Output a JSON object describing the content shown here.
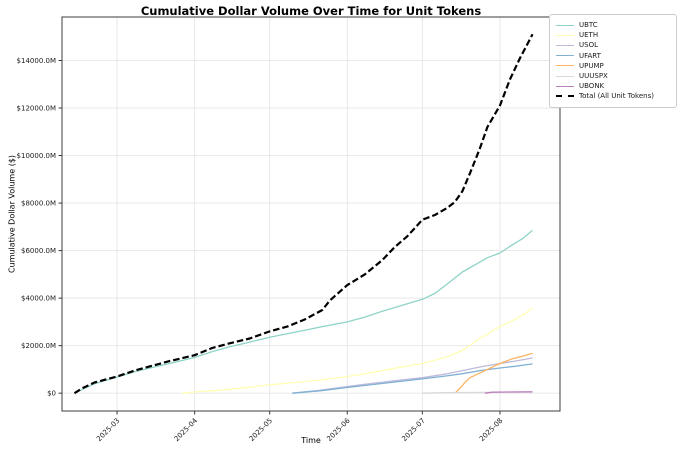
{
  "chart_data": {
    "type": "line",
    "title": "Cumulative Dollar Volume Over Time for Unit Tokens",
    "xlabel": "Time",
    "ylabel": "Cumulative Dollar Volume ($)",
    "x_unit": "day-of-year-2025",
    "xlim": [
      38,
      237
    ],
    "ylim": [
      -750,
      15830
    ],
    "grid": true,
    "legend_position": "upper-right-outside",
    "grid_color": "#e6e6e6",
    "spine_color": "#3c3c3c",
    "xticks": {
      "values": [
        60,
        91,
        121,
        152,
        182,
        213
      ],
      "labels": [
        "2025-03",
        "2025-04",
        "2025-05",
        "2025-06",
        "2025-07",
        "2025-08"
      ]
    },
    "yticks": {
      "values": [
        0,
        2000,
        4000,
        6000,
        8000,
        10000,
        12000,
        14000
      ],
      "labels": [
        "$0",
        "$2000.0M",
        "$4000.0M",
        "$6000.0M",
        "$8000.0M",
        "$10000.0M",
        "$12000.0M",
        "$14000.0M"
      ]
    },
    "series": [
      {
        "name": "UBTC",
        "color": "#8dd3c7",
        "dash": false,
        "points": [
          [
            43,
            0
          ],
          [
            51,
            400
          ],
          [
            60,
            680
          ],
          [
            67,
            900
          ],
          [
            74,
            1080
          ],
          [
            81,
            1250
          ],
          [
            91,
            1500
          ],
          [
            98,
            1750
          ],
          [
            105,
            1950
          ],
          [
            113,
            2150
          ],
          [
            121,
            2350
          ],
          [
            128,
            2500
          ],
          [
            135,
            2650
          ],
          [
            142,
            2800
          ],
          [
            152,
            3000
          ],
          [
            159,
            3200
          ],
          [
            166,
            3450
          ],
          [
            174,
            3700
          ],
          [
            182,
            3950
          ],
          [
            187,
            4200
          ],
          [
            192,
            4600
          ],
          [
            198,
            5100
          ],
          [
            203,
            5400
          ],
          [
            208,
            5700
          ],
          [
            213,
            5900
          ],
          [
            218,
            6250
          ],
          [
            222,
            6500
          ],
          [
            226,
            6850
          ]
        ]
      },
      {
        "name": "UETH",
        "color": "#ffffb3",
        "dash": false,
        "points": [
          [
            86,
            0
          ],
          [
            91,
            50
          ],
          [
            101,
            120
          ],
          [
            111,
            230
          ],
          [
            121,
            350
          ],
          [
            131,
            450
          ],
          [
            141,
            550
          ],
          [
            152,
            700
          ],
          [
            161,
            850
          ],
          [
            171,
            1050
          ],
          [
            182,
            1250
          ],
          [
            191,
            1500
          ],
          [
            198,
            1800
          ],
          [
            205,
            2300
          ],
          [
            213,
            2800
          ],
          [
            219,
            3100
          ],
          [
            223,
            3350
          ],
          [
            226,
            3600
          ]
        ]
      },
      {
        "name": "USOL",
        "color": "#bebada",
        "dash": false,
        "points": [
          [
            130,
            0
          ],
          [
            141,
            120
          ],
          [
            152,
            280
          ],
          [
            161,
            400
          ],
          [
            171,
            520
          ],
          [
            182,
            650
          ],
          [
            191,
            800
          ],
          [
            198,
            950
          ],
          [
            205,
            1100
          ],
          [
            213,
            1250
          ],
          [
            219,
            1350
          ],
          [
            226,
            1480
          ]
        ]
      },
      {
        "name": "UFART",
        "color": "#80b1d3",
        "dash": false,
        "points": [
          [
            130,
            0
          ],
          [
            141,
            100
          ],
          [
            152,
            240
          ],
          [
            161,
            350
          ],
          [
            171,
            470
          ],
          [
            182,
            600
          ],
          [
            191,
            720
          ],
          [
            198,
            820
          ],
          [
            205,
            950
          ],
          [
            213,
            1060
          ],
          [
            219,
            1130
          ],
          [
            226,
            1230
          ]
        ]
      },
      {
        "name": "UPUMP",
        "color": "#fdb462",
        "dash": false,
        "points": [
          [
            195,
            0
          ],
          [
            197,
            200
          ],
          [
            199,
            450
          ],
          [
            201,
            650
          ],
          [
            204,
            800
          ],
          [
            208,
            1000
          ],
          [
            213,
            1250
          ],
          [
            218,
            1450
          ],
          [
            222,
            1550
          ],
          [
            226,
            1680
          ]
        ]
      },
      {
        "name": "UUUSPX",
        "color": "#d9d9d9",
        "dash": false,
        "points": [
          [
            182,
            0
          ],
          [
            191,
            20
          ],
          [
            201,
            30
          ],
          [
            213,
            35
          ],
          [
            226,
            45
          ]
        ]
      },
      {
        "name": "UBONK",
        "color": "#bc80bd",
        "dash": false,
        "points": [
          [
            207,
            0
          ],
          [
            210,
            40
          ],
          [
            216,
            50
          ],
          [
            226,
            60
          ]
        ]
      },
      {
        "name": "Total (All Unit Tokens)",
        "color": "#000000",
        "dash": true,
        "points": [
          [
            43,
            0
          ],
          [
            46,
            200
          ],
          [
            51,
            450
          ],
          [
            60,
            700
          ],
          [
            67,
            950
          ],
          [
            74,
            1150
          ],
          [
            81,
            1350
          ],
          [
            91,
            1600
          ],
          [
            98,
            1900
          ],
          [
            105,
            2100
          ],
          [
            113,
            2300
          ],
          [
            121,
            2600
          ],
          [
            128,
            2800
          ],
          [
            135,
            3100
          ],
          [
            142,
            3500
          ],
          [
            145,
            3900
          ],
          [
            152,
            4550
          ],
          [
            159,
            5000
          ],
          [
            166,
            5600
          ],
          [
            171,
            6150
          ],
          [
            176,
            6600
          ],
          [
            179,
            6950
          ],
          [
            182,
            7300
          ],
          [
            187,
            7500
          ],
          [
            192,
            7800
          ],
          [
            195,
            8050
          ],
          [
            198,
            8500
          ],
          [
            201,
            9250
          ],
          [
            205,
            10300
          ],
          [
            208,
            11200
          ],
          [
            213,
            12100
          ],
          [
            217,
            13200
          ],
          [
            221,
            14100
          ],
          [
            224,
            14700
          ],
          [
            226,
            15100
          ]
        ]
      }
    ]
  }
}
